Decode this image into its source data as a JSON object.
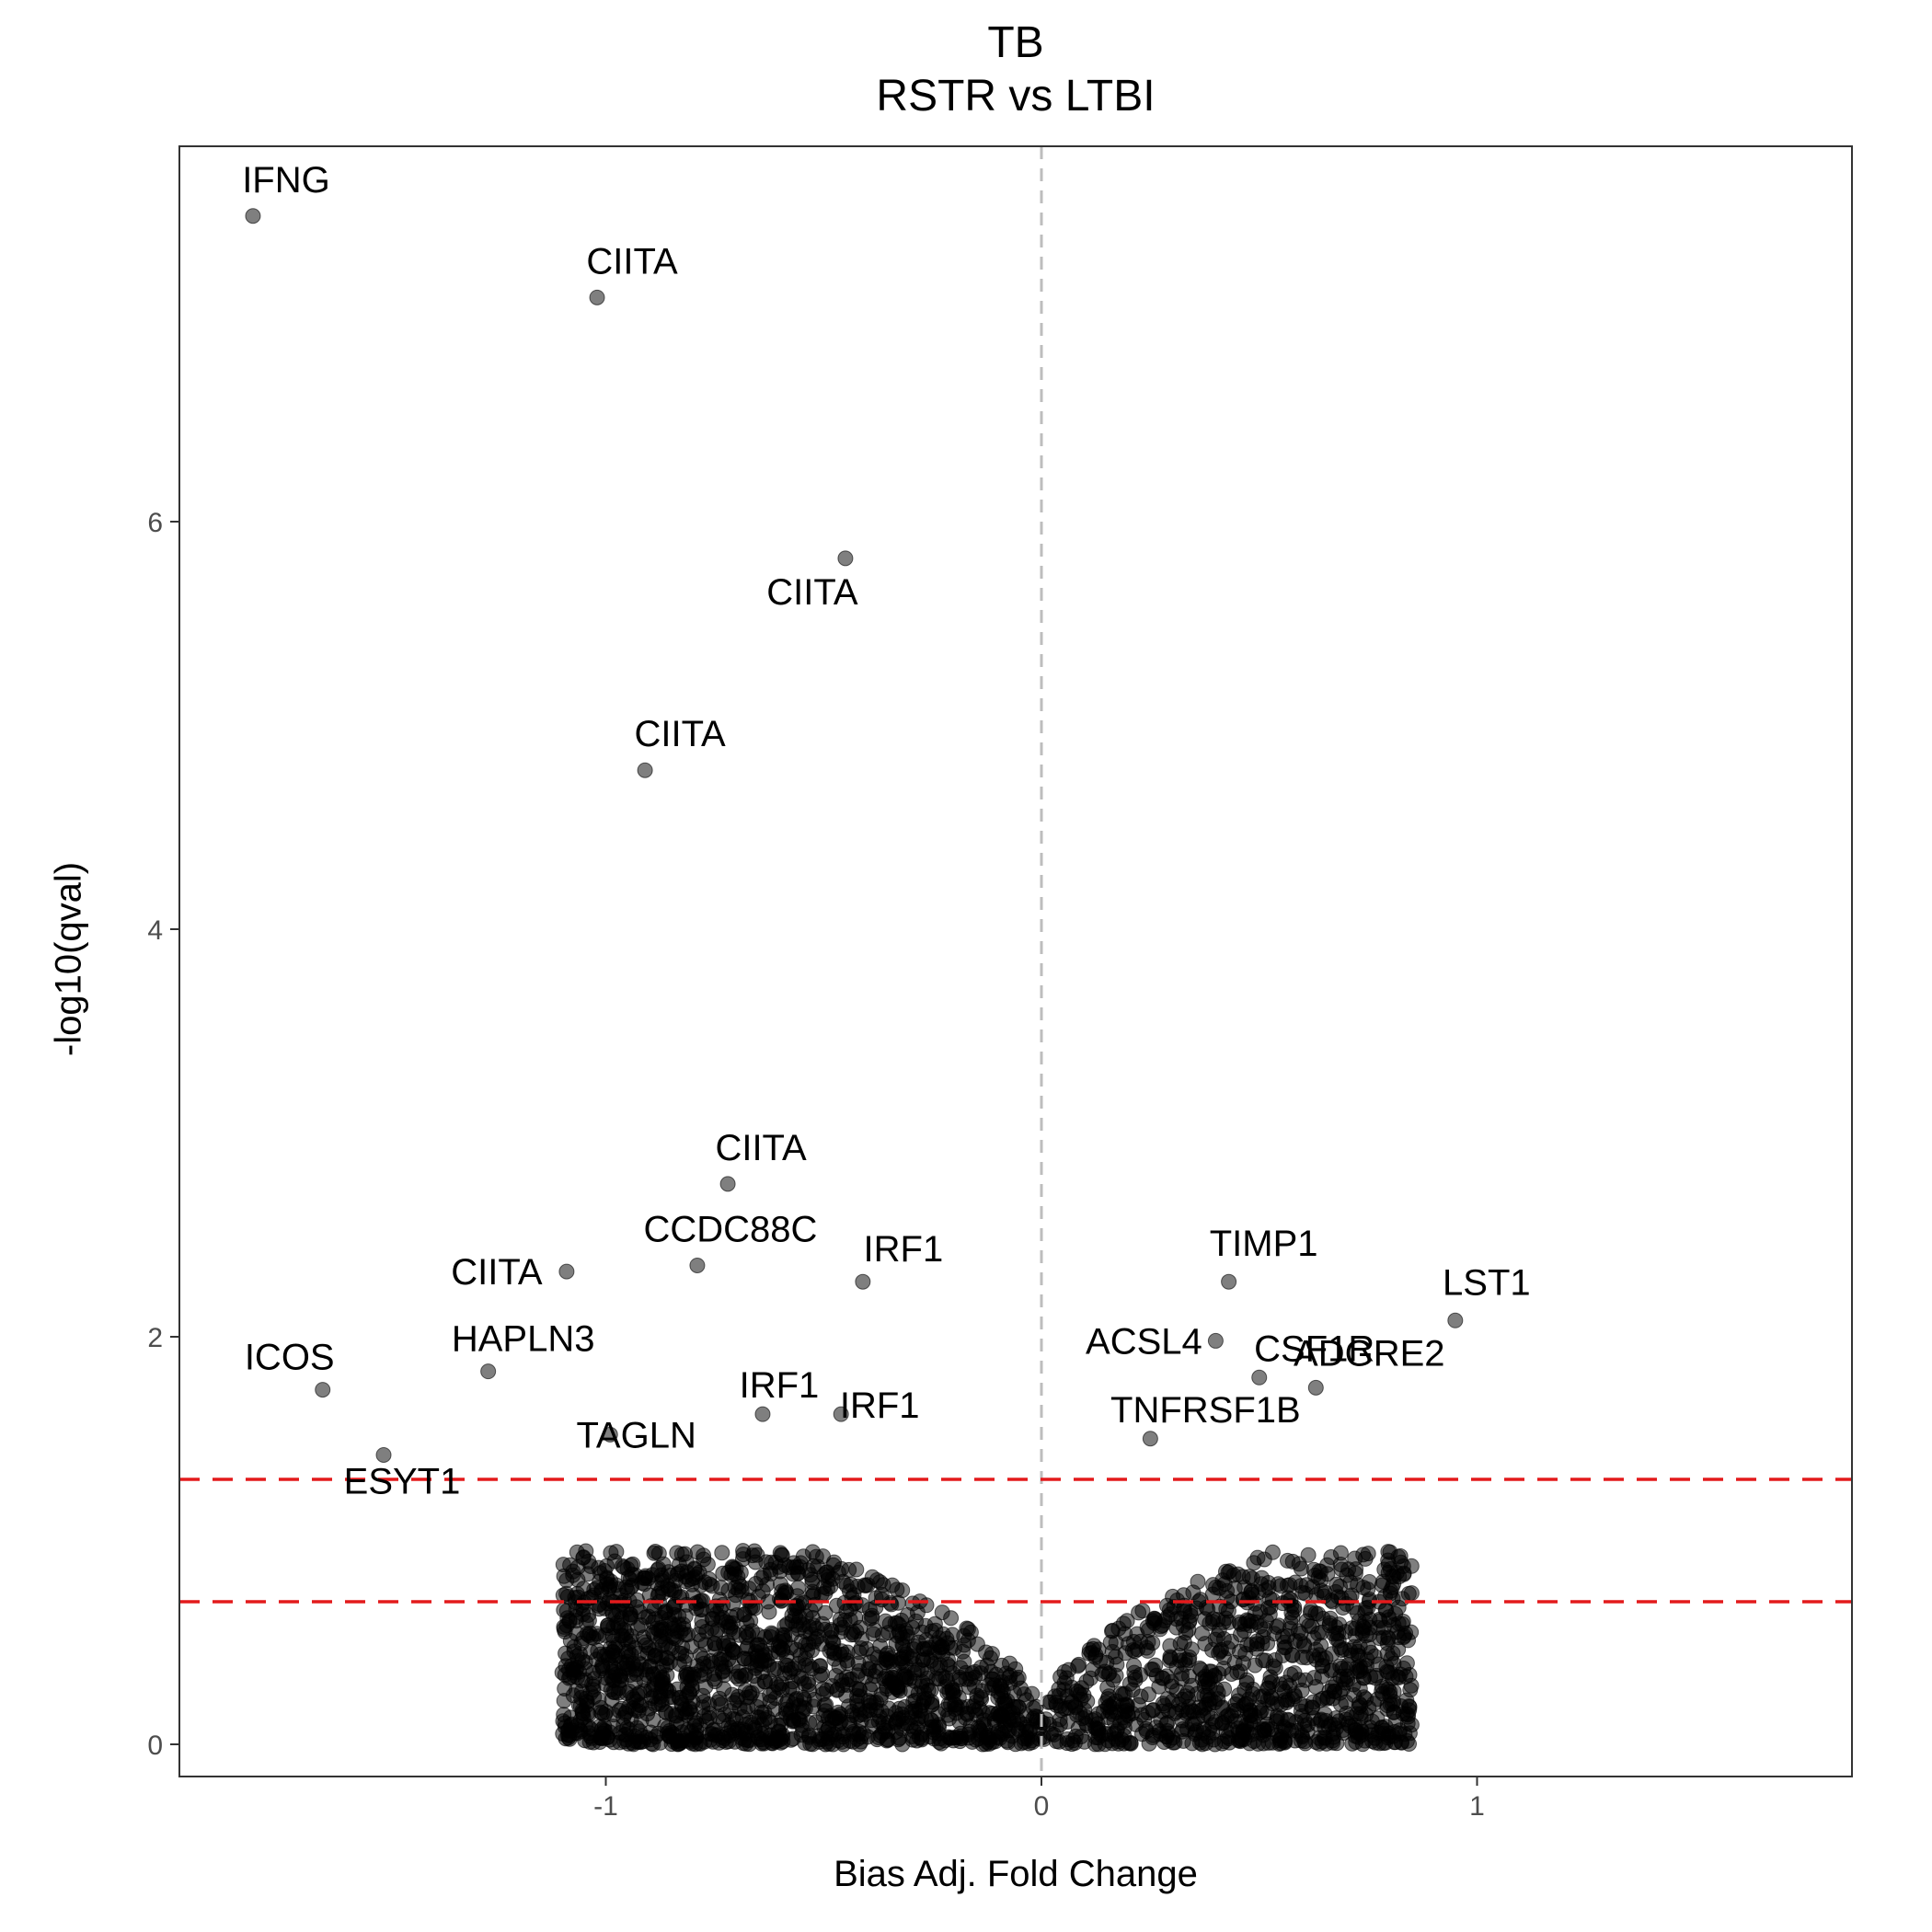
{
  "chart_data": {
    "type": "scatter",
    "title": "TB",
    "subtitle": "RSTR vs LTBI",
    "xlabel": "Bias Adj. Fold Change",
    "ylabel": "-log10(qval)",
    "xlim": [
      -1.98,
      1.86
    ],
    "ylim": [
      -0.15,
      7.6
    ],
    "x_ticks": [
      -1,
      0,
      1
    ],
    "x_tick_labels": [
      "-1",
      "0",
      "1"
    ],
    "y_ticks": [
      0,
      2,
      4,
      6
    ],
    "y_tick_labels": [
      "0",
      "2",
      "4",
      "6"
    ],
    "grid": false,
    "point_color": "#000000",
    "point_opacity": 0.5,
    "threshold_lines": [
      {
        "y": 1.3,
        "style": "dashed",
        "color": "#e31a1c"
      },
      {
        "y": 0.7,
        "style": "dashed",
        "color": "#e31a1c"
      }
    ],
    "vertical_reference": {
      "x": 0,
      "style": "dashed",
      "color": "#bdbdbd"
    },
    "labeled_points": [
      {
        "gene": "IFNG",
        "x": -1.81,
        "y": 7.5
      },
      {
        "gene": "CIITA",
        "x": -1.02,
        "y": 7.1
      },
      {
        "gene": "CIITA",
        "x": -0.45,
        "y": 5.82
      },
      {
        "gene": "CIITA",
        "x": -0.91,
        "y": 4.78
      },
      {
        "gene": "CIITA",
        "x": -0.72,
        "y": 2.75
      },
      {
        "gene": "CCDC88C",
        "x": -0.79,
        "y": 2.35
      },
      {
        "gene": "CIITA",
        "x": -1.09,
        "y": 2.32
      },
      {
        "gene": "IRF1",
        "x": -0.41,
        "y": 2.27
      },
      {
        "gene": "ICOS",
        "x": -1.65,
        "y": 1.74
      },
      {
        "gene": "HAPLN3",
        "x": -1.27,
        "y": 1.83
      },
      {
        "gene": "IRF1",
        "x": -0.64,
        "y": 1.62
      },
      {
        "gene": "ESYT1",
        "x": -1.51,
        "y": 1.42
      },
      {
        "gene": "TAGLN",
        "x": -0.99,
        "y": 1.52
      },
      {
        "gene": "IRF1",
        "x": -0.46,
        "y": 1.62
      },
      {
        "gene": "TIMP1",
        "x": 0.43,
        "y": 2.27
      },
      {
        "gene": "LST1",
        "x": 0.95,
        "y": 2.08
      },
      {
        "gene": "ACSL4",
        "x": 0.4,
        "y": 1.98
      },
      {
        "gene": "CSF1R",
        "x": 0.5,
        "y": 1.8
      },
      {
        "gene": "ADGRE2",
        "x": 0.63,
        "y": 1.75
      },
      {
        "gene": "TNFRSF1B",
        "x": 0.25,
        "y": 1.5
      }
    ]
  }
}
